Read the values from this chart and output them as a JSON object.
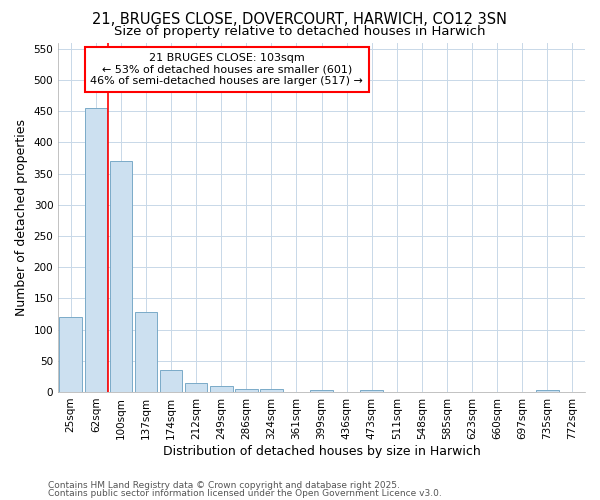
{
  "title1": "21, BRUGES CLOSE, DOVERCOURT, HARWICH, CO12 3SN",
  "title2": "Size of property relative to detached houses in Harwich",
  "xlabel": "Distribution of detached houses by size in Harwich",
  "ylabel": "Number of detached properties",
  "categories": [
    "25sqm",
    "62sqm",
    "100sqm",
    "137sqm",
    "174sqm",
    "212sqm",
    "249sqm",
    "286sqm",
    "324sqm",
    "361sqm",
    "399sqm",
    "436sqm",
    "473sqm",
    "511sqm",
    "548sqm",
    "585sqm",
    "623sqm",
    "660sqm",
    "697sqm",
    "735sqm",
    "772sqm"
  ],
  "values": [
    120,
    455,
    370,
    128,
    35,
    15,
    10,
    5,
    5,
    0,
    3,
    0,
    3,
    0,
    0,
    0,
    0,
    0,
    0,
    3,
    0
  ],
  "bar_color": "#cce0f0",
  "bar_edge_color": "#7aaac8",
  "red_line_x": 1.5,
  "ylim": [
    0,
    560
  ],
  "yticks": [
    0,
    50,
    100,
    150,
    200,
    250,
    300,
    350,
    400,
    450,
    500,
    550
  ],
  "annotation_line1": "21 BRUGES CLOSE: 103sqm",
  "annotation_line2": "← 53% of detached houses are smaller (601)",
  "annotation_line3": "46% of semi-detached houses are larger (517) →",
  "footer1": "Contains HM Land Registry data © Crown copyright and database right 2025.",
  "footer2": "Contains public sector information licensed under the Open Government Licence v3.0.",
  "bg_color": "#ffffff",
  "grid_color": "#c8d8e8",
  "title_fontsize": 10.5,
  "subtitle_fontsize": 9.5,
  "axis_label_fontsize": 9,
  "tick_fontsize": 7.5,
  "annotation_fontsize": 8,
  "footer_fontsize": 6.5
}
